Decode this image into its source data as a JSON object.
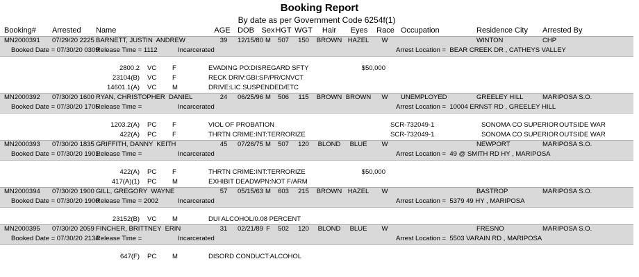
{
  "header": {
    "title": "Booking Report",
    "subtitle": "By date as per Government Code 6254f(1)"
  },
  "columns": {
    "booking": "Booking#",
    "arrested": "Arrested",
    "name": "Name",
    "age": "AGE",
    "dob": "DOB",
    "sex": "Sex",
    "hgt": "HGT",
    "wgt": "WGT",
    "hair": "Hair",
    "eyes": "Eyes",
    "race": "Race",
    "occupation": "Occupation",
    "city": "Residence City",
    "arrested_by": "Arrested By"
  },
  "records": [
    {
      "booking": "MN2000391",
      "arrested": "07/29/20 2225",
      "name": "BARNETT, JUSTIN  ANDREW",
      "age": 39,
      "dob": "12/15/80",
      "sex": "M",
      "hgt": 507,
      "wgt": 150,
      "hair": "BROWN",
      "eyes": "HAZEL",
      "race": "W",
      "city": "WINTON",
      "arrested_by": "CHP",
      "booked": "Booked Date = 07/30/20 0309",
      "release": "Release Time = 1112",
      "status": "Incarcerated",
      "location": "Arrest Location =  BEAR CREEK DR , CATHEYS VALLEY",
      "charges": [
        {
          "code": "2800.2",
          "type": "VC",
          "level": "F",
          "desc": "EVADING PO:DISREGARD SFTY",
          "bail": "$50,000"
        },
        {
          "code": "23104(B)",
          "type": "VC",
          "level": "F",
          "desc": "RECK DRIV:GBI:SP/PR/CNVCT"
        },
        {
          "code": "14601.1(A)",
          "type": "VC",
          "level": "M",
          "desc": "DRIVE:LIC SUSPENDED/ETC"
        }
      ]
    },
    {
      "booking": "MN2000392",
      "arrested": "07/30/20 1600",
      "name": "RYAN, CHRISTOPHER  DANIEL",
      "age": 24,
      "dob": "06/25/96",
      "sex": "M",
      "hgt": 506,
      "wgt": 115,
      "hair": "BROWN",
      "eyes": "BROWN",
      "race": "W",
      "occupation": "UNEMPLOYED",
      "city": "GREELEY HILL",
      "arrested_by": "MARIPOSA S.O.",
      "booked": "Booked Date = 07/30/20 1705",
      "release": "Release Time =",
      "status": "Incarcerated",
      "location": "Arrest Location =  10004 ERNST RD , GREELEY HILL",
      "charges": [
        {
          "code": "1203.2(A)",
          "type": "PC",
          "level": "F",
          "desc": "VIOL OF PROBATION",
          "case": "SCR-732049-1",
          "court": "SONOMA CO SUPERIOR",
          "agency": "OUTSIDE WAR"
        },
        {
          "code": "422(A)",
          "type": "PC",
          "level": "F",
          "desc": "THRTN CRIME:INT:TERRORIZE",
          "case": "SCR-732049-1",
          "court": "SONOMA CO SUPERIOR",
          "agency": "OUTSIDE WAR"
        }
      ]
    },
    {
      "booking": "MN2000393",
      "arrested": "07/30/20 1835",
      "name": "GRIFFITH, DANNY  KEITH",
      "age": 45,
      "dob": "07/26/75",
      "sex": "M",
      "hgt": 507,
      "wgt": 120,
      "hair": "BLOND",
      "eyes": "BLUE",
      "race": "W",
      "city": "NEWPORT",
      "arrested_by": "MARIPOSA S.O.",
      "booked": "Booked Date = 07/30/20 1901",
      "release": "Release Time =",
      "status": "Incarcerated",
      "location": "Arrest Location =  49 @ SMITH RD HY , MARIPOSA",
      "charges": [
        {
          "code": "422(A)",
          "type": "PC",
          "level": "F",
          "desc": "THRTN CRIME:INT:TERRORIZE",
          "bail": "$50,000"
        },
        {
          "code": "417(A)(1)",
          "type": "PC",
          "level": "M",
          "desc": "EXHIBIT DEADWPN:NOT F/ARM"
        }
      ]
    },
    {
      "booking": "MN2000394",
      "arrested": "07/30/20 1900",
      "name": "GILL, GREGORY  WAYNE",
      "age": 57,
      "dob": "05/15/63",
      "sex": "M",
      "hgt": 603,
      "wgt": 215,
      "hair": "BROWN",
      "eyes": "HAZEL",
      "race": "W",
      "city": "BASTROP",
      "arrested_by": "MARIPOSA S.O.",
      "booked": "Booked Date = 07/30/20 1900",
      "release": "Release Time = 2002",
      "status": "Incarcerated",
      "location": "Arrest Location =  5379 49 HY , MARIPOSA",
      "charges": [
        {
          "code": "23152(B)",
          "type": "VC",
          "level": "M",
          "desc": "DUI ALCOHOL/0.08 PERCENT"
        }
      ]
    },
    {
      "booking": "MN2000395",
      "arrested": "07/30/20 2059",
      "name": "FINCHER, BRITTNEY  ERIN",
      "age": 31,
      "dob": "02/21/89",
      "sex": "F",
      "hgt": 502,
      "wgt": 120,
      "hair": "BLOND",
      "eyes": "BLUE",
      "race": "W",
      "city": "FRESNO",
      "arrested_by": "MARIPOSA S.O.",
      "booked": "Booked Date = 07/30/20 2134",
      "release": "Release Time =",
      "status": "Incarcerated",
      "location": "Arrest Location =  5503 VARAIN RD , MARIPOSA",
      "charges": [
        {
          "code": "647(F)",
          "type": "PC",
          "level": "M",
          "desc": "DISORD CONDUCT:ALCOHOL"
        }
      ]
    }
  ]
}
